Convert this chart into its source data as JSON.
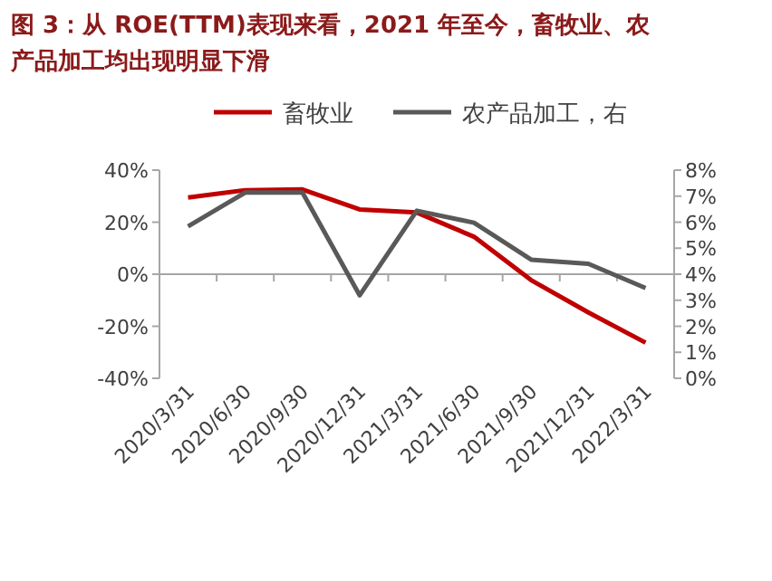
{
  "chart_data": {
    "type": "line",
    "title": "图 3：从 ROE(TTM)表现来看，2021 年至今，畜牧业、农产品加工均出现明显下滑",
    "categories": [
      "2020/3/31",
      "2020/6/30",
      "2020/9/30",
      "2020/12/31",
      "2021/3/31",
      "2021/6/30",
      "2021/9/30",
      "2021/12/31",
      "2022/3/31"
    ],
    "series": [
      {
        "name": "畜牧业",
        "color": "#c00000",
        "values": [
          29.5,
          32.3,
          32.6,
          24.9,
          23.7,
          14.4,
          -2.3,
          -14.7,
          -26.3
        ]
      },
      {
        "name": "农产品加工，右",
        "color": "#595959",
        "axis": "y2",
        "values": [
          5.84,
          7.14,
          7.14,
          3.19,
          6.44,
          5.98,
          4.56,
          4.4,
          3.47
        ]
      }
    ],
    "ylim": [
      -40,
      40
    ],
    "yticks": [
      {
        "value": -40,
        "label": "-40%"
      },
      {
        "value": -20,
        "label": "-20%"
      },
      {
        "value": 0,
        "label": "0%"
      },
      {
        "value": 20,
        "label": "20%"
      },
      {
        "value": 40,
        "label": "40%"
      }
    ],
    "y2lim": [
      0,
      8
    ],
    "y2ticks": [
      {
        "value": 0,
        "label": "0%"
      },
      {
        "value": 1,
        "label": "1%"
      },
      {
        "value": 2,
        "label": "2%"
      },
      {
        "value": 3,
        "label": "3%"
      },
      {
        "value": 4,
        "label": "4%"
      },
      {
        "value": 5,
        "label": "5%"
      },
      {
        "value": 6,
        "label": "6%"
      },
      {
        "value": 7,
        "label": "7%"
      },
      {
        "value": 8,
        "label": "8%"
      }
    ],
    "legend": "top",
    "marker": "none",
    "line_style": "solid"
  }
}
